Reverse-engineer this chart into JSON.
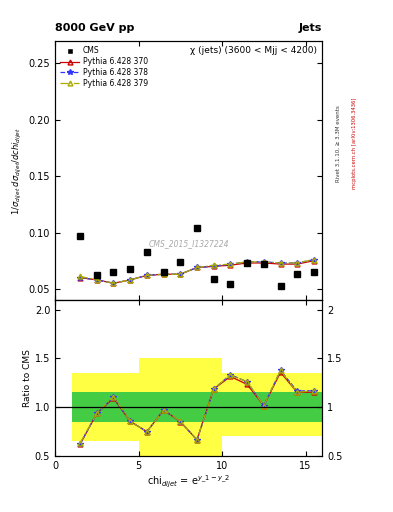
{
  "title_left": "8000 GeV pp",
  "title_right": "Jets",
  "subtitle": "χ (jets) (3600 < Mjj < 4200)",
  "watermark": "CMS_2015_I1327224",
  "rivet_label": "Rivet 3.1.10, ≥ 3.3M events",
  "mcplots_label": "mcplots.cern.ch [arXiv:1306.3436]",
  "ylabel_main": "1/σ_dijet dσ_dijet/dchi_dijet",
  "ylabel_ratio": "Ratio to CMS",
  "xlabel": "chi_dijet = e^{|y_1 - y_2|}",
  "xlim": [
    0,
    16
  ],
  "ylim_main": [
    0.04,
    0.27
  ],
  "ylim_ratio": [
    0.5,
    2.1
  ],
  "yticks_main": [
    0.05,
    0.1,
    0.15,
    0.2,
    0.25
  ],
  "yticks_ratio": [
    0.5,
    1.0,
    1.5,
    2.0
  ],
  "xticks": [
    0,
    5,
    10,
    15
  ],
  "cms_x": [
    1.5,
    2.5,
    3.5,
    4.5,
    5.5,
    6.5,
    7.5,
    8.5,
    9.5,
    10.5,
    11.5,
    12.5,
    13.5,
    14.5,
    15.5
  ],
  "cms_y": [
    0.097,
    0.062,
    0.065,
    0.068,
    0.083,
    0.065,
    0.074,
    0.104,
    0.059,
    0.054,
    0.073,
    0.072,
    0.053,
    0.063,
    0.065
  ],
  "py370_x": [
    1.5,
    2.5,
    3.5,
    4.5,
    5.5,
    6.5,
    7.5,
    8.5,
    9.5,
    10.5,
    11.5,
    12.5,
    13.5,
    14.5,
    15.5
  ],
  "py370_y": [
    0.06,
    0.058,
    0.055,
    0.058,
    0.062,
    0.063,
    0.063,
    0.069,
    0.07,
    0.071,
    0.073,
    0.073,
    0.072,
    0.072,
    0.075
  ],
  "py378_x": [
    1.5,
    2.5,
    3.5,
    4.5,
    5.5,
    6.5,
    7.5,
    8.5,
    9.5,
    10.5,
    11.5,
    12.5,
    13.5,
    14.5,
    15.5
  ],
  "py378_y": [
    0.06,
    0.058,
    0.055,
    0.058,
    0.062,
    0.063,
    0.063,
    0.069,
    0.07,
    0.072,
    0.074,
    0.074,
    0.073,
    0.073,
    0.076
  ],
  "py379_x": [
    1.5,
    2.5,
    3.5,
    4.5,
    5.5,
    6.5,
    7.5,
    8.5,
    9.5,
    10.5,
    11.5,
    12.5,
    13.5,
    14.5,
    15.5
  ],
  "py379_y": [
    0.061,
    0.058,
    0.055,
    0.058,
    0.062,
    0.063,
    0.063,
    0.069,
    0.071,
    0.072,
    0.074,
    0.074,
    0.073,
    0.073,
    0.076
  ],
  "ratio370_y": [
    0.618,
    0.935,
    1.092,
    0.853,
    0.747,
    0.969,
    0.851,
    0.663,
    1.186,
    1.315,
    1.233,
    1.014,
    1.358,
    1.151,
    1.154
  ],
  "ratio378_y": [
    0.619,
    0.935,
    1.1,
    0.853,
    0.747,
    0.969,
    0.851,
    0.663,
    1.186,
    1.333,
    1.26,
    1.014,
    1.377,
    1.165,
    1.169
  ],
  "ratio379_y": [
    0.629,
    0.935,
    1.108,
    0.853,
    0.747,
    0.969,
    0.855,
    0.663,
    1.186,
    1.333,
    1.26,
    1.014,
    1.377,
    1.151,
    1.169
  ],
  "yellow_band_lo": [
    0.65,
    0.65,
    0.65,
    0.65,
    0.5,
    0.5,
    0.5,
    0.5,
    0.5,
    0.7,
    0.7,
    0.7,
    0.7,
    0.7,
    0.7
  ],
  "yellow_band_hi": [
    1.35,
    1.35,
    1.35,
    1.35,
    1.5,
    1.5,
    1.5,
    1.5,
    1.5,
    1.35,
    1.35,
    1.35,
    1.35,
    1.35,
    1.35
  ],
  "green_band_lo": [
    0.85,
    0.85,
    0.85,
    0.85,
    0.85,
    0.85,
    0.85,
    0.85,
    0.85,
    0.85,
    0.85,
    0.85,
    0.85,
    0.85,
    0.85
  ],
  "green_band_hi": [
    1.15,
    1.15,
    1.15,
    1.15,
    1.15,
    1.15,
    1.15,
    1.15,
    1.15,
    1.15,
    1.15,
    1.15,
    1.15,
    1.15,
    1.15
  ],
  "color_py370": "#cc0000",
  "color_py378": "#3333ff",
  "color_py379": "#aaaa00",
  "color_cms": "black",
  "color_green": "#44cc44",
  "color_yellow": "#ffff44",
  "bg_color": "#ffffff"
}
